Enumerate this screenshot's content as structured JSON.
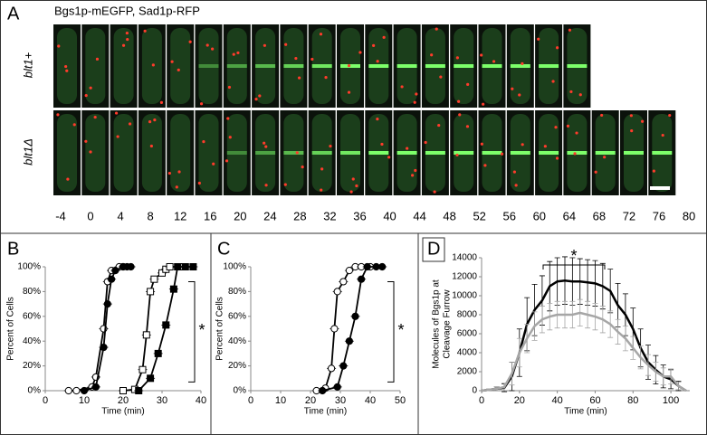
{
  "panel_a": {
    "panel": "A",
    "title": "Bgs1p-mEGFP, Sad1p-RFP",
    "rows": [
      "blt1+",
      "blt1Δ"
    ],
    "time_points": [
      -4,
      0,
      4,
      8,
      12,
      16,
      20,
      24,
      28,
      32,
      36,
      40,
      44,
      48,
      52,
      56,
      60,
      64,
      68,
      72,
      76,
      80
    ]
  },
  "chart_data": [
    {
      "type": "scatter-line",
      "panel": "B",
      "ylabel": "Percent of Cells",
      "xlabel": "Time (min)",
      "annotation": "*",
      "xlim": [
        0,
        40
      ],
      "xticks": [
        0,
        10,
        20,
        30,
        40
      ],
      "ylim": [
        0,
        100
      ],
      "yticks": [
        {
          "value": 0,
          "label": "0%"
        },
        {
          "value": 20,
          "label": "20%"
        },
        {
          "value": 40,
          "label": "40%"
        },
        {
          "value": 60,
          "label": "60%"
        },
        {
          "value": 80,
          "label": "80%"
        },
        {
          "value": 100,
          "label": "100%"
        }
      ],
      "series": [
        {
          "marker": "circle",
          "filled": false,
          "color": "#000000",
          "x": [
            6,
            8,
            12,
            13,
            15,
            16,
            17,
            19,
            20
          ],
          "values": [
            0,
            0,
            3,
            11,
            50,
            88,
            97,
            100,
            100
          ]
        },
        {
          "marker": "circle",
          "filled": true,
          "color": "#000000",
          "x": [
            10,
            13,
            15,
            16,
            17,
            18,
            20,
            21,
            22
          ],
          "values": [
            0,
            3,
            35,
            70,
            90,
            97,
            100,
            100,
            100
          ]
        },
        {
          "marker": "square",
          "filled": false,
          "color": "#000000",
          "x": [
            20,
            23,
            25,
            26,
            27,
            28,
            30,
            31,
            32,
            35
          ],
          "values": [
            0,
            1,
            17,
            45,
            80,
            90,
            95,
            98,
            100,
            100
          ]
        },
        {
          "marker": "square",
          "filled": true,
          "color": "#000000",
          "x": [
            24,
            27,
            29,
            31,
            33,
            34,
            36,
            38
          ],
          "values": [
            0,
            10,
            30,
            53,
            82,
            100,
            100,
            100
          ]
        }
      ]
    },
    {
      "type": "scatter-line",
      "panel": "C",
      "ylabel": "Percent of Cells",
      "xlabel": "Time (min)",
      "annotation": "*",
      "xlim": [
        0,
        50
      ],
      "xticks": [
        0,
        10,
        20,
        30,
        40,
        50
      ],
      "ylim": [
        0,
        100
      ],
      "yticks": [
        {
          "value": 0,
          "label": "0%"
        },
        {
          "value": 20,
          "label": "20%"
        },
        {
          "value": 40,
          "label": "40%"
        },
        {
          "value": 60,
          "label": "60%"
        },
        {
          "value": 80,
          "label": "80%"
        },
        {
          "value": 100,
          "label": "100%"
        }
      ],
      "series": [
        {
          "marker": "circle",
          "filled": false,
          "color": "#000000",
          "x": [
            22,
            25,
            27,
            28,
            29,
            31,
            33,
            35,
            37,
            40
          ],
          "values": [
            0,
            2,
            18,
            50,
            80,
            88,
            97,
            100,
            100,
            100
          ]
        },
        {
          "marker": "circle",
          "filled": true,
          "color": "#000000",
          "x": [
            24,
            29,
            31,
            33,
            35,
            37,
            39,
            42,
            44
          ],
          "values": [
            0,
            3,
            20,
            40,
            60,
            90,
            100,
            100,
            100
          ]
        }
      ]
    },
    {
      "type": "line",
      "panel": "D",
      "ylabel": [
        "Molecules of Bgs1p at",
        "Cleavage Furrow"
      ],
      "xlabel": "Time (min)",
      "annotation": "*",
      "xlim": [
        0,
        110
      ],
      "xticks": [
        0,
        20,
        40,
        60,
        80,
        100
      ],
      "ylim": [
        0,
        14000
      ],
      "yticks": [
        0,
        2000,
        4000,
        6000,
        8000,
        10000,
        12000,
        14000
      ],
      "series": [
        {
          "color": "#000000",
          "x": [
            0,
            4,
            8,
            12,
            16,
            20,
            24,
            28,
            32,
            36,
            40,
            44,
            48,
            52,
            56,
            60,
            64,
            68,
            72,
            76,
            80,
            84,
            88,
            92,
            96,
            100,
            104,
            108
          ],
          "values": [
            0,
            100,
            200,
            300,
            1500,
            4000,
            7000,
            8500,
            9500,
            11000,
            11500,
            11600,
            11500,
            11500,
            11400,
            11300,
            11000,
            10500,
            9000,
            8000,
            6500,
            4500,
            3000,
            2200,
            1500,
            1200,
            500,
            0
          ],
          "errors": [
            0,
            100,
            200,
            400,
            1500,
            2500,
            2800,
            2700,
            2600,
            2600,
            2500,
            2500,
            2500,
            2400,
            2400,
            2400,
            2400,
            2300,
            2300,
            2200,
            2200,
            2000,
            1800,
            1500,
            1200,
            1000,
            500,
            0
          ]
        },
        {
          "color": "#a6a6a6",
          "x": [
            0,
            4,
            8,
            12,
            16,
            20,
            24,
            28,
            32,
            36,
            40,
            44,
            48,
            52,
            56,
            60,
            64,
            68,
            72,
            76,
            80,
            84,
            88,
            92,
            96,
            100,
            104,
            108
          ],
          "values": [
            0,
            100,
            200,
            400,
            1800,
            4000,
            5500,
            6800,
            7500,
            7800,
            8000,
            8000,
            8000,
            8200,
            8000,
            7800,
            7500,
            7000,
            6200,
            5500,
            4500,
            3500,
            2700,
            2000,
            1500,
            1500,
            500,
            0
          ],
          "errors": [
            0,
            100,
            200,
            400,
            1200,
            1500,
            1500,
            1500,
            1400,
            1400,
            1400,
            1400,
            1400,
            1400,
            1400,
            1400,
            1400,
            1400,
            1300,
            1300,
            1200,
            1200,
            1100,
            1000,
            900,
            800,
            400,
            0
          ]
        }
      ]
    }
  ]
}
